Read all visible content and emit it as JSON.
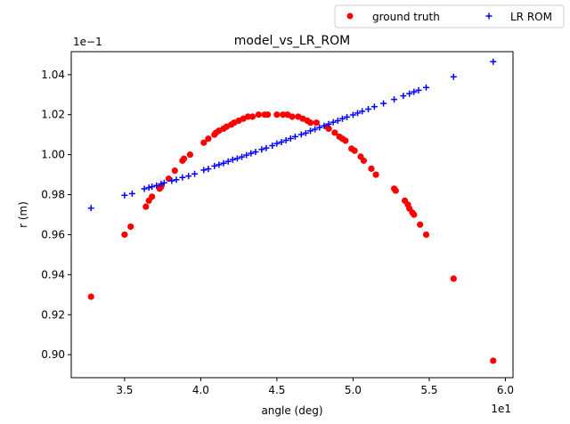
{
  "chart_data": {
    "type": "scatter",
    "title": "model_vs_LR_ROM",
    "xlabel": "angle (deg)",
    "ylabel": "r (m)",
    "x_multiplier": "1e1",
    "y_multiplier": "1e−1",
    "xlim": [
      3.15,
      6.05
    ],
    "ylim": [
      0.8885,
      1.0515
    ],
    "x_ticks": [
      3.5,
      4.0,
      4.5,
      5.0,
      5.5,
      6.0
    ],
    "x_tick_labels": [
      "3.5",
      "4.0",
      "4.5",
      "5.0",
      "5.5",
      "6.0"
    ],
    "y_ticks": [
      0.9,
      0.92,
      0.94,
      0.96,
      0.98,
      1.0,
      1.02,
      1.04
    ],
    "y_tick_labels": [
      "0.90",
      "0.92",
      "0.94",
      "0.96",
      "0.98",
      "1.00",
      "1.02",
      "1.04"
    ],
    "grid": false,
    "legend_placement": "above-right, outside plot",
    "series": [
      {
        "name": "ground truth",
        "marker": "circle",
        "color": "#ff0000",
        "points": [
          [
            3.28,
            0.929
          ],
          [
            3.5,
            0.96
          ],
          [
            3.54,
            0.964
          ],
          [
            3.64,
            0.974
          ],
          [
            3.66,
            0.977
          ],
          [
            3.68,
            0.979
          ],
          [
            3.73,
            0.983
          ],
          [
            3.74,
            0.984
          ],
          [
            3.79,
            0.988
          ],
          [
            3.83,
            0.992
          ],
          [
            3.88,
            0.997
          ],
          [
            3.89,
            0.998
          ],
          [
            3.93,
            1.0
          ],
          [
            4.02,
            1.006
          ],
          [
            4.05,
            1.008
          ],
          [
            4.09,
            1.01
          ],
          [
            4.1,
            1.011
          ],
          [
            4.12,
            1.012
          ],
          [
            4.15,
            1.013
          ],
          [
            4.17,
            1.014
          ],
          [
            4.2,
            1.015
          ],
          [
            4.22,
            1.016
          ],
          [
            4.25,
            1.017
          ],
          [
            4.28,
            1.018
          ],
          [
            4.31,
            1.019
          ],
          [
            4.34,
            1.019
          ],
          [
            4.38,
            1.02
          ],
          [
            4.42,
            1.02
          ],
          [
            4.44,
            1.02
          ],
          [
            4.5,
            1.02
          ],
          [
            4.54,
            1.02
          ],
          [
            4.57,
            1.02
          ],
          [
            4.6,
            1.019
          ],
          [
            4.64,
            1.019
          ],
          [
            4.67,
            1.018
          ],
          [
            4.7,
            1.017
          ],
          [
            4.72,
            1.016
          ],
          [
            4.76,
            1.016
          ],
          [
            4.83,
            1.014
          ],
          [
            4.84,
            1.013
          ],
          [
            4.88,
            1.011
          ],
          [
            4.91,
            1.009
          ],
          [
            4.93,
            1.008
          ],
          [
            4.95,
            1.007
          ],
          [
            4.99,
            1.003
          ],
          [
            5.01,
            1.002
          ],
          [
            5.05,
            0.999
          ],
          [
            5.07,
            0.997
          ],
          [
            5.12,
            0.993
          ],
          [
            5.15,
            0.99
          ],
          [
            5.27,
            0.983
          ],
          [
            5.28,
            0.982
          ],
          [
            5.34,
            0.977
          ],
          [
            5.36,
            0.975
          ],
          [
            5.37,
            0.973
          ],
          [
            5.39,
            0.971
          ],
          [
            5.4,
            0.97
          ],
          [
            5.44,
            0.965
          ],
          [
            5.48,
            0.96
          ],
          [
            5.66,
            0.938
          ],
          [
            5.92,
            0.897
          ]
        ]
      },
      {
        "name": "LR ROM",
        "marker": "plus",
        "color": "#0000ff",
        "points": [
          [
            3.28,
            0.9733
          ],
          [
            3.5,
            0.9797
          ],
          [
            3.55,
            0.9805
          ],
          [
            3.63,
            0.9829
          ],
          [
            3.66,
            0.9835
          ],
          [
            3.68,
            0.984
          ],
          [
            3.71,
            0.9846
          ],
          [
            3.74,
            0.9854
          ],
          [
            3.76,
            0.9859
          ],
          [
            3.81,
            0.9869
          ],
          [
            3.84,
            0.9875
          ],
          [
            3.88,
            0.9886
          ],
          [
            3.92,
            0.9893
          ],
          [
            3.96,
            0.9904
          ],
          [
            4.02,
            0.9923
          ],
          [
            4.05,
            0.9929
          ],
          [
            4.09,
            0.9943
          ],
          [
            4.12,
            0.995
          ],
          [
            4.15,
            0.9957
          ],
          [
            4.18,
            0.9966
          ],
          [
            4.21,
            0.9975
          ],
          [
            4.24,
            0.9981
          ],
          [
            4.27,
            0.9989
          ],
          [
            4.3,
            0.9998
          ],
          [
            4.33,
            1.0007
          ],
          [
            4.36,
            1.0014
          ],
          [
            4.4,
            1.0026
          ],
          [
            4.43,
            1.0033
          ],
          [
            4.47,
            1.0045
          ],
          [
            4.5,
            1.0056
          ],
          [
            4.53,
            1.0063
          ],
          [
            4.56,
            1.0072
          ],
          [
            4.59,
            1.0081
          ],
          [
            4.62,
            1.009
          ],
          [
            4.66,
            1.0101
          ],
          [
            4.69,
            1.0108
          ],
          [
            4.72,
            1.0119
          ],
          [
            4.75,
            1.0127
          ],
          [
            4.78,
            1.0136
          ],
          [
            4.81,
            1.0144
          ],
          [
            4.84,
            1.0153
          ],
          [
            4.87,
            1.0162
          ],
          [
            4.9,
            1.017
          ],
          [
            4.93,
            1.018
          ],
          [
            4.96,
            1.0188
          ],
          [
            5.0,
            1.0199
          ],
          [
            5.03,
            1.0208
          ],
          [
            5.06,
            1.0217
          ],
          [
            5.1,
            1.0228
          ],
          [
            5.14,
            1.024
          ],
          [
            5.2,
            1.0256
          ],
          [
            5.27,
            1.0276
          ],
          [
            5.33,
            1.0294
          ],
          [
            5.37,
            1.0305
          ],
          [
            5.4,
            1.0314
          ],
          [
            5.43,
            1.0322
          ],
          [
            5.48,
            1.0336
          ],
          [
            5.66,
            1.0389
          ],
          [
            5.92,
            1.0465
          ]
        ]
      }
    ]
  }
}
